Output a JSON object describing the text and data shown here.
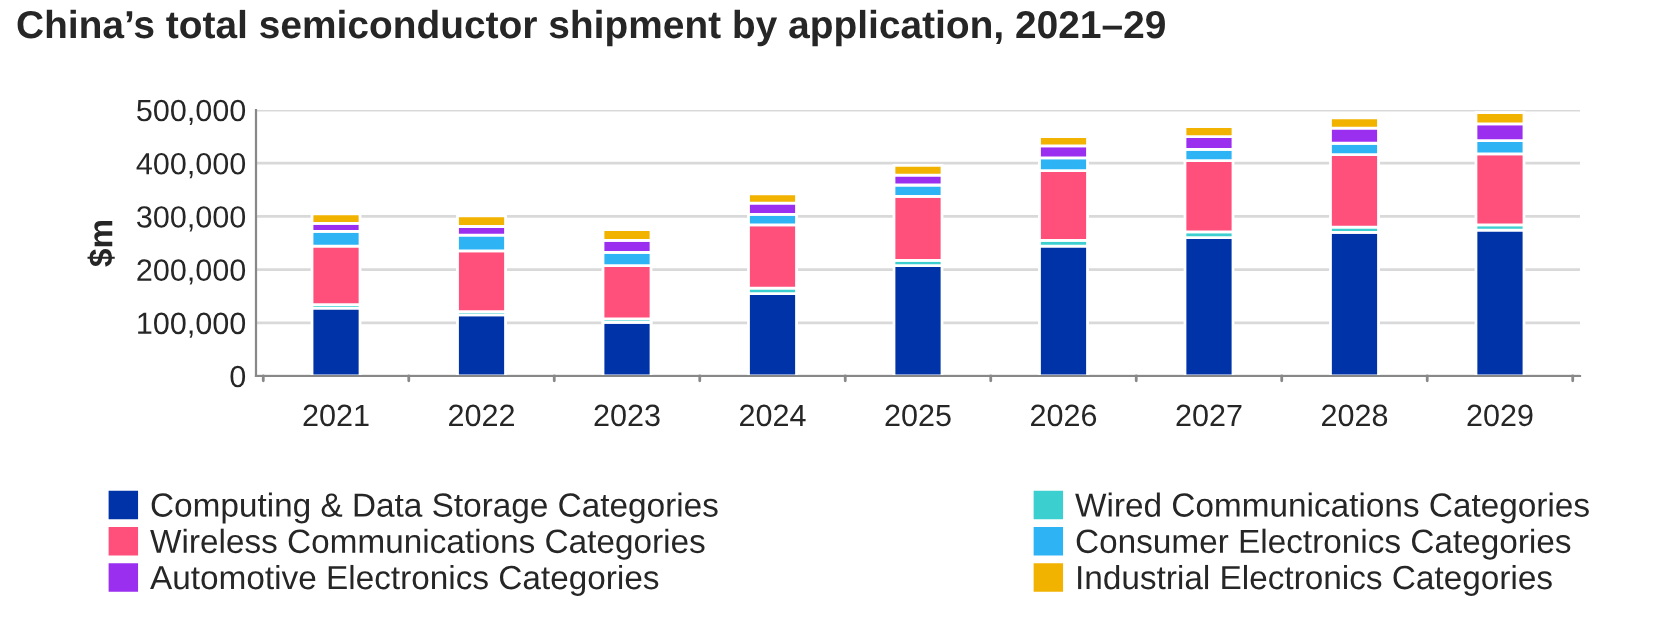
{
  "chart_data": {
    "type": "bar",
    "stacked": true,
    "title": "China’s total semiconductor shipment by application, 2021–29",
    "ylabel": "$m",
    "categories": [
      "2021",
      "2022",
      "2023",
      "2024",
      "2025",
      "2026",
      "2027",
      "2028",
      "2029"
    ],
    "series": [
      {
        "name": "Computing & Data Storage Categories",
        "color": "#0033a8",
        "values": [
          127500,
          115000,
          101000,
          155000,
          207500,
          244000,
          260000,
          270000,
          274000
        ]
      },
      {
        "name": "Wired Communications Categories",
        "color": "#3ccfcf",
        "values": [
          6500,
          6000,
          6500,
          10000,
          10000,
          11000,
          11000,
          10000,
          10000
        ]
      },
      {
        "name": "Wireless Communications Categories",
        "color": "#ff4f7b",
        "values": [
          110000,
          114000,
          100000,
          119000,
          120000,
          131000,
          134000,
          136000,
          133500
        ]
      },
      {
        "name": "Consumer Electronics Categories",
        "color": "#2eb3f5",
        "values": [
          28000,
          30000,
          25000,
          20000,
          21500,
          24000,
          21000,
          21500,
          25000
        ]
      },
      {
        "name": "Automotive Electronics Categories",
        "color": "#9b2ff0",
        "values": [
          15000,
          16000,
          22500,
          21000,
          18500,
          22500,
          24000,
          28500,
          31500
        ]
      },
      {
        "name": "Industrial Electronics Categories",
        "color": "#f2b200",
        "values": [
          18000,
          20000,
          20000,
          17500,
          18500,
          17500,
          19000,
          19000,
          21000
        ]
      }
    ],
    "ylim": [
      0,
      500000
    ],
    "yticks": [
      {
        "value": 0,
        "label": "0"
      },
      {
        "value": 100000,
        "label": "100,000"
      },
      {
        "value": 200000,
        "label": "200,000"
      },
      {
        "value": 300000,
        "label": "300,000"
      },
      {
        "value": 400000,
        "label": "400,000"
      },
      {
        "value": 500000,
        "label": "500,000"
      }
    ],
    "grid": "y",
    "legend": "bottom"
  }
}
